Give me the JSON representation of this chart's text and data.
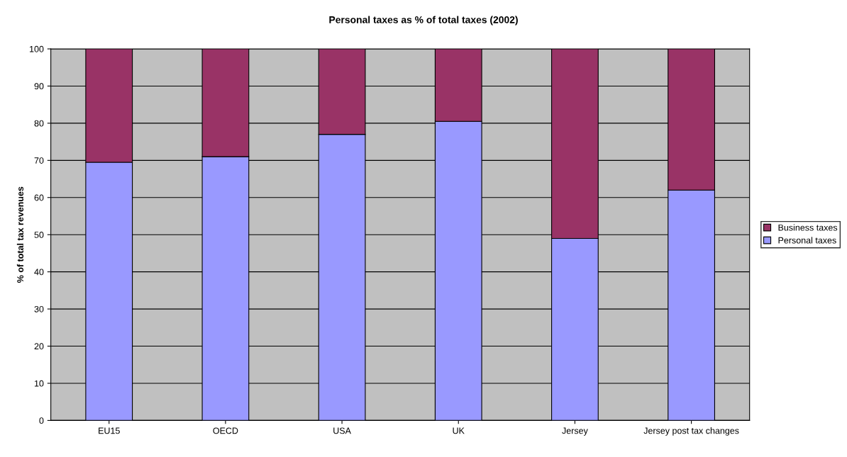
{
  "chart_data": {
    "type": "bar",
    "title": "Personal taxes as % of total taxes (2002)",
    "ylabel": "% of total tax revenues",
    "categories": [
      "EU15",
      "OECD",
      "USA",
      "UK",
      "Jersey",
      "Jersey post tax changes"
    ],
    "stacked": true,
    "series": [
      {
        "name": "Personal taxes",
        "color": "#9999ff",
        "values": [
          69.5,
          71,
          77,
          80.5,
          49,
          62
        ]
      },
      {
        "name": "Business taxes",
        "color": "#993366",
        "values": [
          30.5,
          29,
          23,
          19.5,
          51,
          38
        ]
      }
    ],
    "ylim": [
      0,
      100
    ],
    "yticks": [
      0,
      10,
      20,
      30,
      40,
      50,
      60,
      70,
      80,
      90,
      100
    ],
    "grid": "y",
    "legend": "right"
  }
}
